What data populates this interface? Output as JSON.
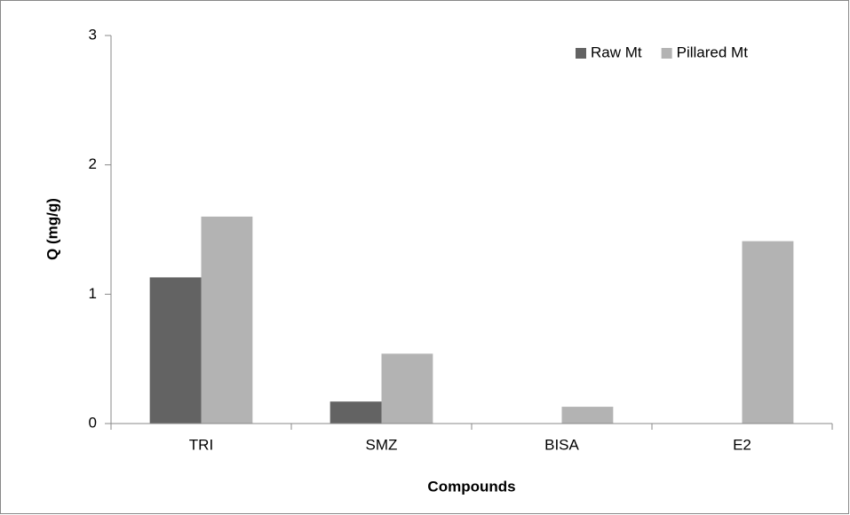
{
  "chart_data": {
    "type": "bar",
    "x_label": "Compounds",
    "y_label": "Q (mg/g)",
    "categories": [
      "TRI",
      "SMZ",
      "BISA",
      "E2"
    ],
    "series": [
      {
        "name": "Raw Mt",
        "color": "#636363",
        "values": [
          1.13,
          0.17,
          0,
          0
        ]
      },
      {
        "name": "Pillared Mt",
        "color": "#b3b3b3",
        "values": [
          1.6,
          0.54,
          0.13,
          1.41
        ]
      }
    ],
    "ylim": [
      0,
      3
    ],
    "yticks": [
      0,
      1,
      2,
      3
    ],
    "grid": false,
    "legend": "top-right"
  }
}
